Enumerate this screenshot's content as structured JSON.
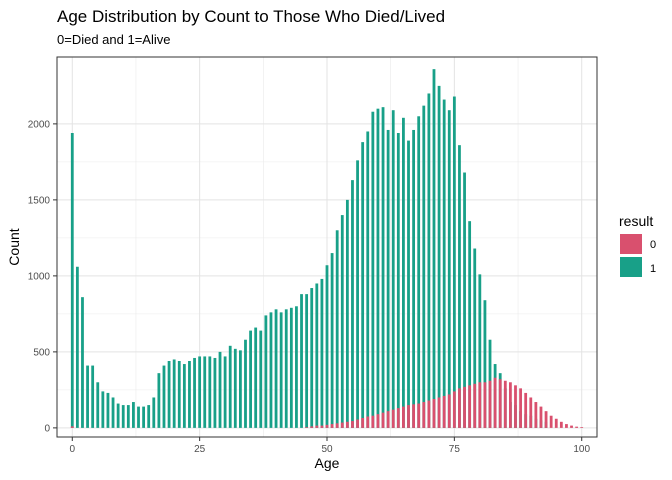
{
  "chart_data": {
    "type": "bar",
    "title": "Age Distribution by Count to Those Who Died/Lived",
    "subtitle": "0=Died and 1=Alive",
    "xlabel": "Age",
    "ylabel": "Count",
    "xlim": [
      -3,
      103
    ],
    "ylim": [
      -60,
      2440
    ],
    "x_ticks": [
      0,
      25,
      50,
      75,
      100
    ],
    "y_ticks": [
      0,
      500,
      1000,
      1500,
      2000
    ],
    "grid": true,
    "legend": {
      "title": "result",
      "position": "right"
    },
    "series": [
      {
        "name": "0",
        "color": "#D9506E",
        "values": [
          10,
          0,
          0,
          0,
          0,
          0,
          0,
          0,
          0,
          0,
          0,
          0,
          0,
          0,
          0,
          0,
          0,
          0,
          0,
          0,
          0,
          0,
          0,
          0,
          0,
          0,
          0,
          0,
          0,
          0,
          0,
          0,
          0,
          0,
          0,
          0,
          0,
          0,
          0,
          0,
          0,
          0,
          0,
          0,
          0,
          0,
          5,
          10,
          15,
          15,
          20,
          25,
          30,
          35,
          40,
          45,
          55,
          65,
          75,
          80,
          90,
          100,
          110,
          120,
          130,
          140,
          150,
          155,
          160,
          170,
          180,
          190,
          200,
          210,
          220,
          240,
          260,
          270,
          280,
          290,
          300,
          300,
          310,
          330,
          320,
          310,
          300,
          280,
          260,
          230,
          200,
          170,
          140,
          110,
          80,
          60,
          40,
          25,
          15,
          8,
          5
        ]
      },
      {
        "name": "1",
        "color": "#18A088",
        "values": [
          1940,
          1060,
          860,
          410,
          410,
          300,
          240,
          230,
          200,
          160,
          150,
          150,
          170,
          140,
          140,
          150,
          200,
          360,
          410,
          440,
          450,
          440,
          420,
          440,
          460,
          470,
          470,
          470,
          460,
          500,
          470,
          540,
          520,
          510,
          580,
          640,
          660,
          640,
          740,
          760,
          780,
          760,
          780,
          790,
          800,
          880,
          880,
          920,
          950,
          980,
          1070,
          1150,
          1300,
          1400,
          1500,
          1630,
          1760,
          1880,
          1950,
          2080,
          2100,
          2110,
          1960,
          2090,
          1940,
          2040,
          1890,
          1960,
          2050,
          2120,
          2200,
          2360,
          2250,
          2160,
          2090,
          2180,
          1860,
          1680,
          1360,
          1180,
          1010,
          840,
          580,
          420,
          360,
          260,
          170,
          150,
          110,
          90,
          80,
          60,
          50,
          40
        ]
      }
    ]
  }
}
